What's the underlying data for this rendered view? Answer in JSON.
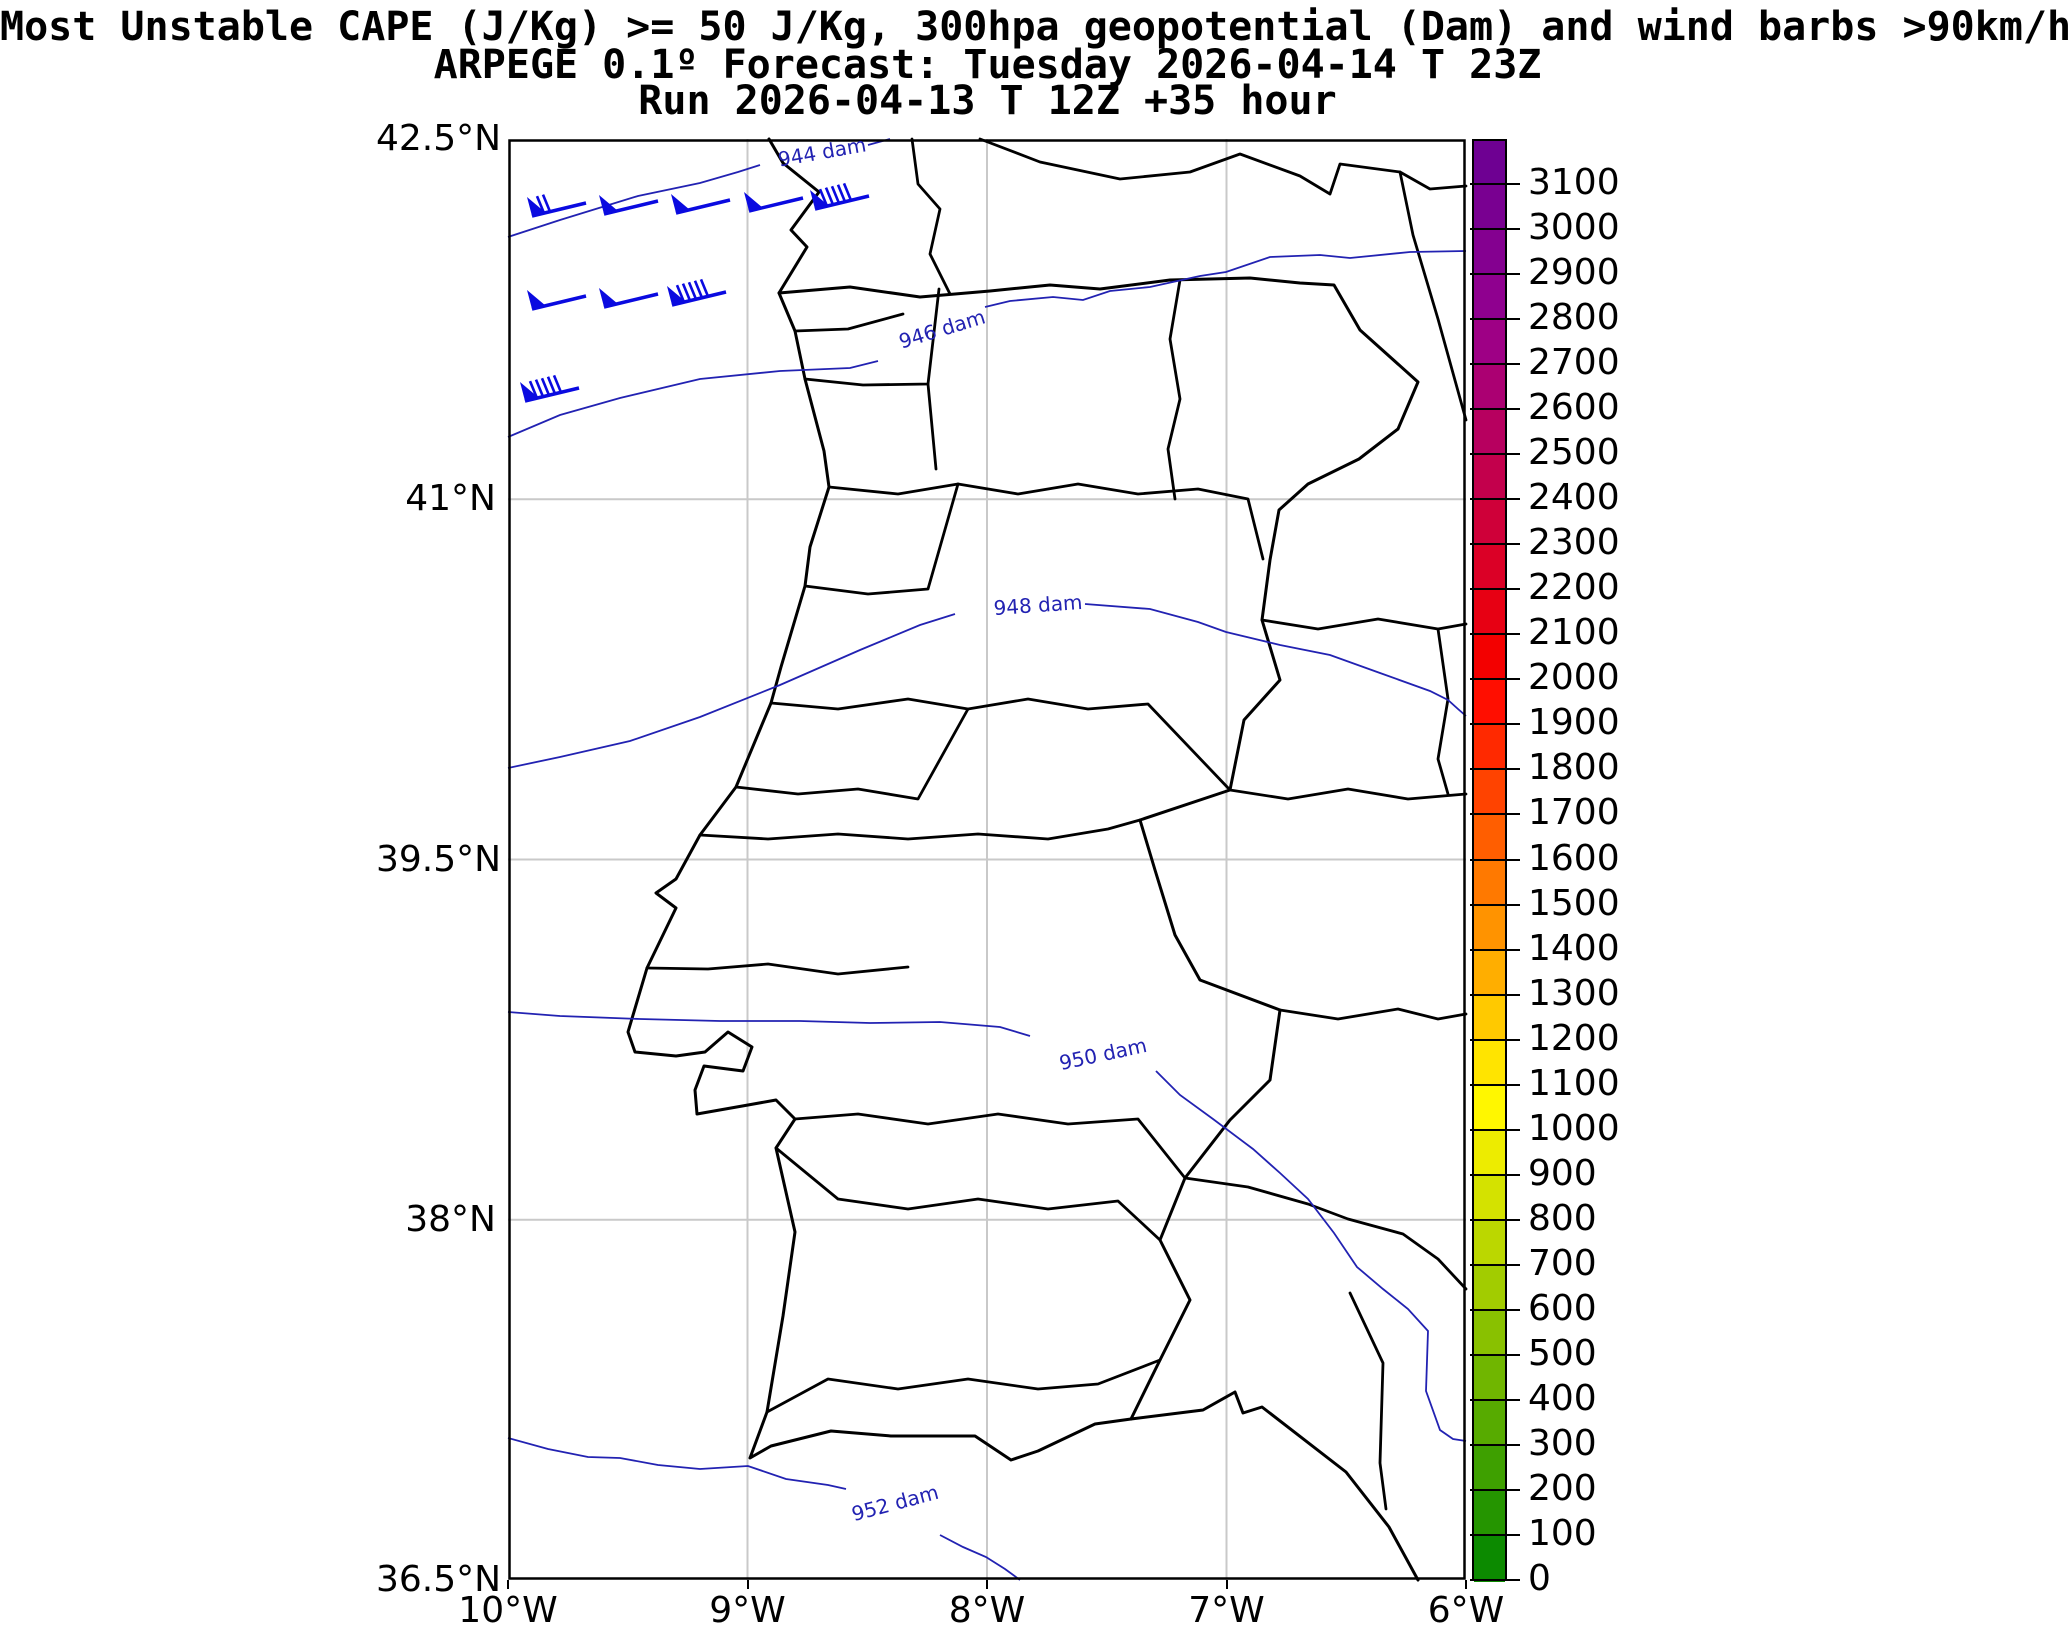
{
  "title": {
    "line1": "Most Unstable CAPE (J/Kg) >= 50 J/Kg, 300hpa geopotential (Dam) and wind barbs >90km/h",
    "line2": "ARPEGE 0.1º Forecast: Tuesday 2026-04-14 T 23Z",
    "line3": "Run 2026-04-13 T 12Z +35 hour"
  },
  "chart_data": {
    "type": "map-contour",
    "model": "ARPEGE 0.1º",
    "valid_time": "Tuesday 2026-04-14 T 23Z",
    "run": "2026-04-13 T 12Z +35 hour",
    "variable": "Most Unstable CAPE (J/Kg) >= 50 J/Kg",
    "overlay": "300hpa geopotential (Dam), wind barbs >90km/h",
    "axes": {
      "x_label_unit": "degrees West",
      "y_label_unit": "degrees North",
      "lon_range": [
        -10,
        -6
      ],
      "lat_range": [
        36.5,
        42.5
      ],
      "x_ticks": [
        {
          "label": "10°W",
          "lon": -10,
          "grid": false
        },
        {
          "label": "9°W",
          "lon": -9,
          "grid": true
        },
        {
          "label": "8°W",
          "lon": -8,
          "grid": true
        },
        {
          "label": "7°W",
          "lon": -7,
          "grid": true
        },
        {
          "label": "6°W",
          "lon": -6,
          "grid": false
        }
      ],
      "y_ticks": [
        {
          "label": "42.5°N",
          "lat": 42.5,
          "grid": false
        },
        {
          "label": "41°N",
          "lat": 41.0,
          "grid": true
        },
        {
          "label": "39.5°N",
          "lat": 39.5,
          "grid": true
        },
        {
          "label": "38°N",
          "lat": 38.0,
          "grid": true
        },
        {
          "label": "36.5°N",
          "lat": 36.5,
          "grid": false
        }
      ]
    },
    "colorbar": {
      "unit": "J/Kg",
      "min": 0,
      "max": 3200,
      "tick_step": 100,
      "tick_labels_top_to_bottom": [
        "3100",
        "3000",
        "2900",
        "2800",
        "2700",
        "2600",
        "2500",
        "2400",
        "2300",
        "2200",
        "2100",
        "2000",
        "1900",
        "1800",
        "1700",
        "1600",
        "1500",
        "1400",
        "1300",
        "1200",
        "1100",
        "1000",
        "900",
        "800",
        "700",
        "600",
        "500",
        "400",
        "300",
        "200",
        "100",
        "0"
      ],
      "band_colors_top_to_bottom": [
        "#6e0092",
        "#790091",
        "#840090",
        "#8f008f",
        "#9e0085",
        "#ab0072",
        "#b7005f",
        "#c3004c",
        "#cf0039",
        "#db0026",
        "#e70013",
        "#f30000",
        "#ff0e00",
        "#ff2900",
        "#ff4300",
        "#ff5e00",
        "#ff7900",
        "#ff9300",
        "#ffae00",
        "#ffc900",
        "#ffe400",
        "#fff700",
        "#edec00",
        "#d4e200",
        "#bbd700",
        "#a2cc00",
        "#89c100",
        "#70b600",
        "#57ab00",
        "#3ea000",
        "#259500",
        "#0c8a00"
      ]
    },
    "contours": [
      {
        "value": 944,
        "label": "944 dam",
        "label_x": 314,
        "label_y": 13,
        "rot": -10,
        "segments": [
          [
            [
              0,
              98
            ],
            [
              52,
              81
            ],
            [
              130,
              57
            ],
            [
              192,
              44
            ],
            [
              230,
              33
            ],
            [
              252,
              26
            ]
          ],
          [
            [
              360,
              6
            ],
            [
              382,
              0
            ]
          ]
        ]
      },
      {
        "value": 946,
        "label": "946 dam",
        "label_x": 434,
        "label_y": 190,
        "rot": -17,
        "segments": [
          [
            [
              0,
              298
            ],
            [
              52,
              276
            ],
            [
              112,
              259
            ],
            [
              192,
              240
            ],
            [
              272,
              232
            ],
            [
              342,
              229
            ],
            [
              370,
              222
            ]
          ],
          [
            [
              477,
              168
            ],
            [
              502,
              162
            ],
            [
              545,
              158
            ],
            [
              575,
              161
            ],
            [
              602,
              152
            ],
            [
              642,
              148
            ],
            [
              692,
              137
            ],
            [
              718,
              133
            ],
            [
              762,
              118
            ],
            [
              812,
              116
            ],
            [
              842,
              119
            ],
            [
              902,
              113
            ],
            [
              958,
              112
            ]
          ]
        ]
      },
      {
        "value": 948,
        "label": "948 dam",
        "label_x": 530,
        "label_y": 466,
        "rot": -4,
        "segments": [
          [
            [
              0,
              629
            ],
            [
              52,
              618
            ],
            [
              122,
              602
            ],
            [
              192,
              578
            ],
            [
              272,
              546
            ],
            [
              352,
              511
            ],
            [
              412,
              486
            ],
            [
              447,
              475
            ]
          ],
          [
            [
              577,
              465
            ],
            [
              642,
              470
            ],
            [
              690,
              483
            ],
            [
              718,
              493
            ],
            [
              772,
              506
            ],
            [
              822,
              516
            ],
            [
              872,
              534
            ],
            [
              922,
              552
            ],
            [
              940,
              561
            ],
            [
              950,
              570
            ],
            [
              958,
              577
            ]
          ]
        ]
      },
      {
        "value": 950,
        "label": "950 dam",
        "label_x": 595,
        "label_y": 915,
        "rot": -12,
        "segments": [
          [
            [
              0,
              873
            ],
            [
              52,
              877
            ],
            [
              132,
              880
            ],
            [
              212,
              882
            ],
            [
              292,
              882
            ],
            [
              362,
              884
            ],
            [
              432,
              883
            ],
            [
              492,
              888
            ],
            [
              522,
              897
            ]
          ],
          [
            [
              648,
              932
            ],
            [
              672,
              956
            ],
            [
              705,
              980
            ],
            [
              745,
              1010
            ],
            [
              772,
              1034
            ],
            [
              800,
              1060
            ],
            [
              826,
              1094
            ],
            [
              849,
              1128
            ],
            [
              875,
              1150
            ],
            [
              900,
              1170
            ],
            [
              920,
              1192
            ],
            [
              918,
              1252
            ],
            [
              932,
              1291
            ],
            [
              945,
              1300
            ],
            [
              958,
              1302
            ]
          ]
        ]
      },
      {
        "value": 952,
        "label": "952 dam",
        "label_x": 387,
        "label_y": 1364,
        "rot": -15,
        "segments": [
          [
            [
              0,
              1299
            ],
            [
              40,
              1310
            ],
            [
              80,
              1318
            ],
            [
              112,
              1319
            ],
            [
              150,
              1326
            ],
            [
              192,
              1330
            ],
            [
              240,
              1327
            ],
            [
              278,
              1340
            ],
            [
              320,
              1346
            ],
            [
              338,
              1350
            ]
          ],
          [
            [
              432,
              1396
            ],
            [
              455,
              1408
            ],
            [
              478,
              1418
            ],
            [
              497,
              1430
            ],
            [
              512,
              1441
            ]
          ]
        ]
      }
    ],
    "wind_barbs": {
      "threshold": ">90km/h",
      "barbs": [
        {
          "x": 24,
          "y": 77,
          "type": "p2"
        },
        {
          "x": 96,
          "y": 75,
          "type": "p"
        },
        {
          "x": 168,
          "y": 74,
          "type": "p"
        },
        {
          "x": 241,
          "y": 72,
          "type": "p"
        },
        {
          "x": 307,
          "y": 70,
          "type": "p5"
        },
        {
          "x": 24,
          "y": 170,
          "type": "p"
        },
        {
          "x": 96,
          "y": 168,
          "type": "p"
        },
        {
          "x": 164,
          "y": 166,
          "type": "p5"
        },
        {
          "x": 17,
          "y": 262,
          "type": "p5"
        }
      ]
    },
    "colors": {
      "contour_line": "#2222b2",
      "contour_label": "#2222b2",
      "wind_barb": "#0a0ae0",
      "gridline": "#c9c9c9",
      "coastline": "#000000"
    }
  }
}
